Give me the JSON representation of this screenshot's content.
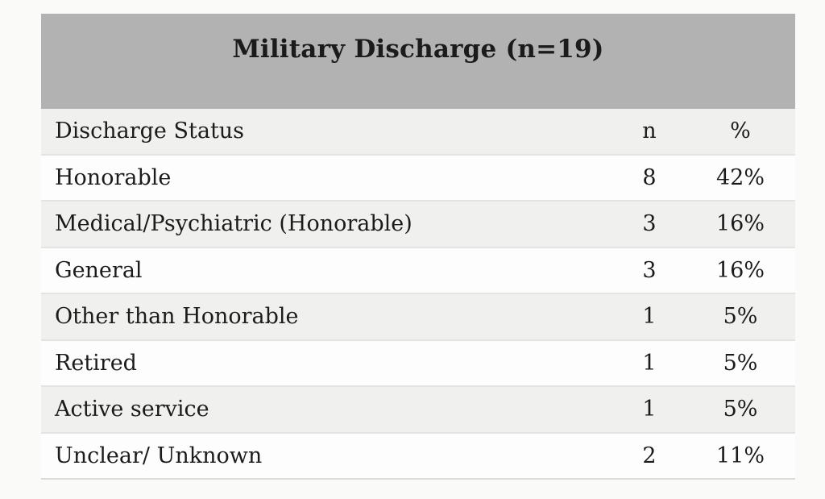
{
  "table": {
    "title": "Military Discharge (n=19)",
    "header": {
      "label": "Discharge Status",
      "n": "n",
      "pct": "%"
    },
    "rows": [
      {
        "label": "Honorable",
        "n": "8",
        "pct": "42%"
      },
      {
        "label": "Medical/Psychiatric (Honorable)",
        "n": "3",
        "pct": "16%"
      },
      {
        "label": "General",
        "n": "3",
        "pct": "16%"
      },
      {
        "label": "Other than Honorable",
        "n": "1",
        "pct": "5%"
      },
      {
        "label": "Retired",
        "n": "1",
        "pct": "5%"
      },
      {
        "label": "Active service",
        "n": "1",
        "pct": "5%"
      },
      {
        "label": "Unclear/ Unknown",
        "n": "2",
        "pct": "11%"
      }
    ]
  },
  "colors": {
    "title_band": "#b2b2b2",
    "row_shaded": "#f0f0ee",
    "row_plain": "#fdfdfd",
    "separator": "#e3e3e1",
    "text": "#1b1b1b",
    "page_bg": "#fafaf8"
  },
  "chart_data": {
    "type": "table",
    "title": "Military Discharge (n=19)",
    "columns": [
      "Discharge Status",
      "n",
      "%"
    ],
    "rows": [
      [
        "Honorable",
        8,
        "42%"
      ],
      [
        "Medical/Psychiatric (Honorable)",
        3,
        "16%"
      ],
      [
        "General",
        3,
        "16%"
      ],
      [
        "Other than Honorable",
        1,
        "5%"
      ],
      [
        "Retired",
        1,
        "5%"
      ],
      [
        "Active service",
        1,
        "5%"
      ],
      [
        "Unclear/ Unknown",
        2,
        "11%"
      ]
    ],
    "total_n": 19
  }
}
